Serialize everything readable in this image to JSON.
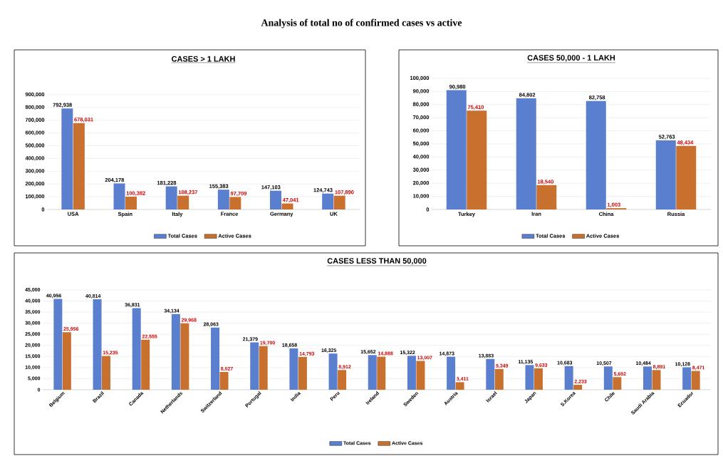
{
  "chart_data": [
    {
      "type": "other",
      "title": "Analysis of total no of confirmed cases vs active"
    },
    {
      "type": "bar",
      "title": "CASES > 1 LAKH",
      "categories": [
        "USA",
        "Spain",
        "Italy",
        "France",
        "Germany",
        "UK"
      ],
      "series": [
        {
          "name": "Total Cases",
          "color": "#5b7fcf",
          "values": [
            792938,
            204178,
            181228,
            155383,
            147103,
            124743
          ],
          "value_labels": [
            "792,938",
            "204,178",
            "181,228",
            "155,383",
            "147,103",
            "124,743"
          ]
        },
        {
          "name": "Active Cases",
          "color": "#c8702e",
          "values": [
            678031,
            100382,
            108237,
            97709,
            47041,
            107890
          ],
          "value_labels": [
            "678,031",
            "100,382",
            "108,237",
            "97,709",
            "47,041",
            "107,890"
          ]
        }
      ],
      "ylim": [
        0,
        900000
      ],
      "yticks": [
        0,
        {
          "value": 100000,
          "label": "100,000"
        },
        {
          "value": 200000,
          "label": "200,000"
        },
        {
          "value": 300000,
          "label": "300,000"
        },
        {
          "value": 400000,
          "label": "400,000"
        },
        {
          "value": 500000,
          "label": "500,000"
        },
        {
          "value": 600000,
          "label": "600,000"
        },
        {
          "value": 700000,
          "label": "700,000"
        },
        {
          "value": 800000,
          "label": "800,000"
        },
        {
          "value": 900000,
          "label": "900,000"
        }
      ],
      "grid": "y",
      "legend": "bottom"
    },
    {
      "type": "bar",
      "title": "CASES  50,000 - 1 LAKH",
      "categories": [
        "Turkey",
        "Iran",
        "China",
        "Russia"
      ],
      "series": [
        {
          "name": "Total Cases",
          "color": "#5b7fcf",
          "values": [
            90980,
            84802,
            82758,
            52763
          ],
          "value_labels": [
            "90,980",
            "84,802",
            "82,758",
            "52,763"
          ]
        },
        {
          "name": "Active Cases",
          "color": "#c8702e",
          "values": [
            75410,
            18540,
            1003,
            48434
          ],
          "value_labels": [
            "75,410",
            "18,540",
            "1,003",
            "48,434"
          ]
        }
      ],
      "ylim": [
        0,
        100000
      ],
      "yticks": [
        0,
        {
          "value": 10000,
          "label": "10,000"
        },
        {
          "value": 20000,
          "label": "20,000"
        },
        {
          "value": 30000,
          "label": "30,000"
        },
        {
          "value": 40000,
          "label": "40,000"
        },
        {
          "value": 50000,
          "label": "50,000"
        },
        {
          "value": 60000,
          "label": "60,000"
        },
        {
          "value": 70000,
          "label": "70,000"
        },
        {
          "value": 80000,
          "label": "80,000"
        },
        {
          "value": 90000,
          "label": "90,000"
        },
        {
          "value": 100000,
          "label": "100,000"
        }
      ],
      "grid": "y",
      "legend": "bottom"
    },
    {
      "type": "bar",
      "title": "CASES  LESS THAN 50,000",
      "categories": [
        "Belgium",
        "Brazil",
        "Canada",
        "Netherlands",
        "Switzerland",
        "Portugal",
        "India",
        "Peru",
        "Ireland",
        "Sweden",
        "Austria",
        "Israel",
        "Japan",
        "S.Korea",
        "Chile",
        "Saudi Arabia",
        "Ecuador"
      ],
      "series": [
        {
          "name": "Total Cases",
          "color": "#5b7fcf",
          "values": [
            40956,
            40814,
            36831,
            34134,
            28063,
            21379,
            18658,
            16325,
            15652,
            15322,
            14873,
            13883,
            11135,
            10683,
            10507,
            10484,
            10128
          ],
          "value_labels": [
            "40,956",
            "40,814",
            "36,831",
            "34,134",
            "28,063",
            "21,379",
            "18,658",
            "16,325",
            "15,652",
            "15,322",
            "14,873",
            "13,883",
            "11,135",
            "10,683",
            "10,507",
            "10,484",
            "10,128"
          ]
        },
        {
          "name": "Active Cases",
          "color": "#c8702e",
          "values": [
            25956,
            15235,
            22555,
            29968,
            8027,
            19700,
            14793,
            8912,
            14888,
            13007,
            3411,
            9349,
            9633,
            2233,
            5692,
            8891,
            8471
          ],
          "value_labels": [
            "25,956",
            "15,235",
            "22,555",
            "29,968",
            "8,027",
            "19,700",
            "14,793",
            "8,912",
            "14,888",
            "13,007",
            "3,411",
            "9,349",
            "9,633",
            "2,233",
            "5,692",
            "8,891",
            "8,471"
          ]
        }
      ],
      "ylim": [
        0,
        45000
      ],
      "yticks": [
        0,
        {
          "value": 5000,
          "label": "5,000"
        },
        {
          "value": 10000,
          "label": "10,000"
        },
        {
          "value": 15000,
          "label": "15,000"
        },
        {
          "value": 20000,
          "label": "20,000"
        },
        {
          "value": 25000,
          "label": "25,000"
        },
        {
          "value": 30000,
          "label": "30,000"
        },
        {
          "value": 35000,
          "label": "35,000"
        },
        {
          "value": 40000,
          "label": "40,000"
        },
        {
          "value": 45000,
          "label": "45,000"
        }
      ],
      "grid": "y",
      "legend": "bottom"
    }
  ]
}
